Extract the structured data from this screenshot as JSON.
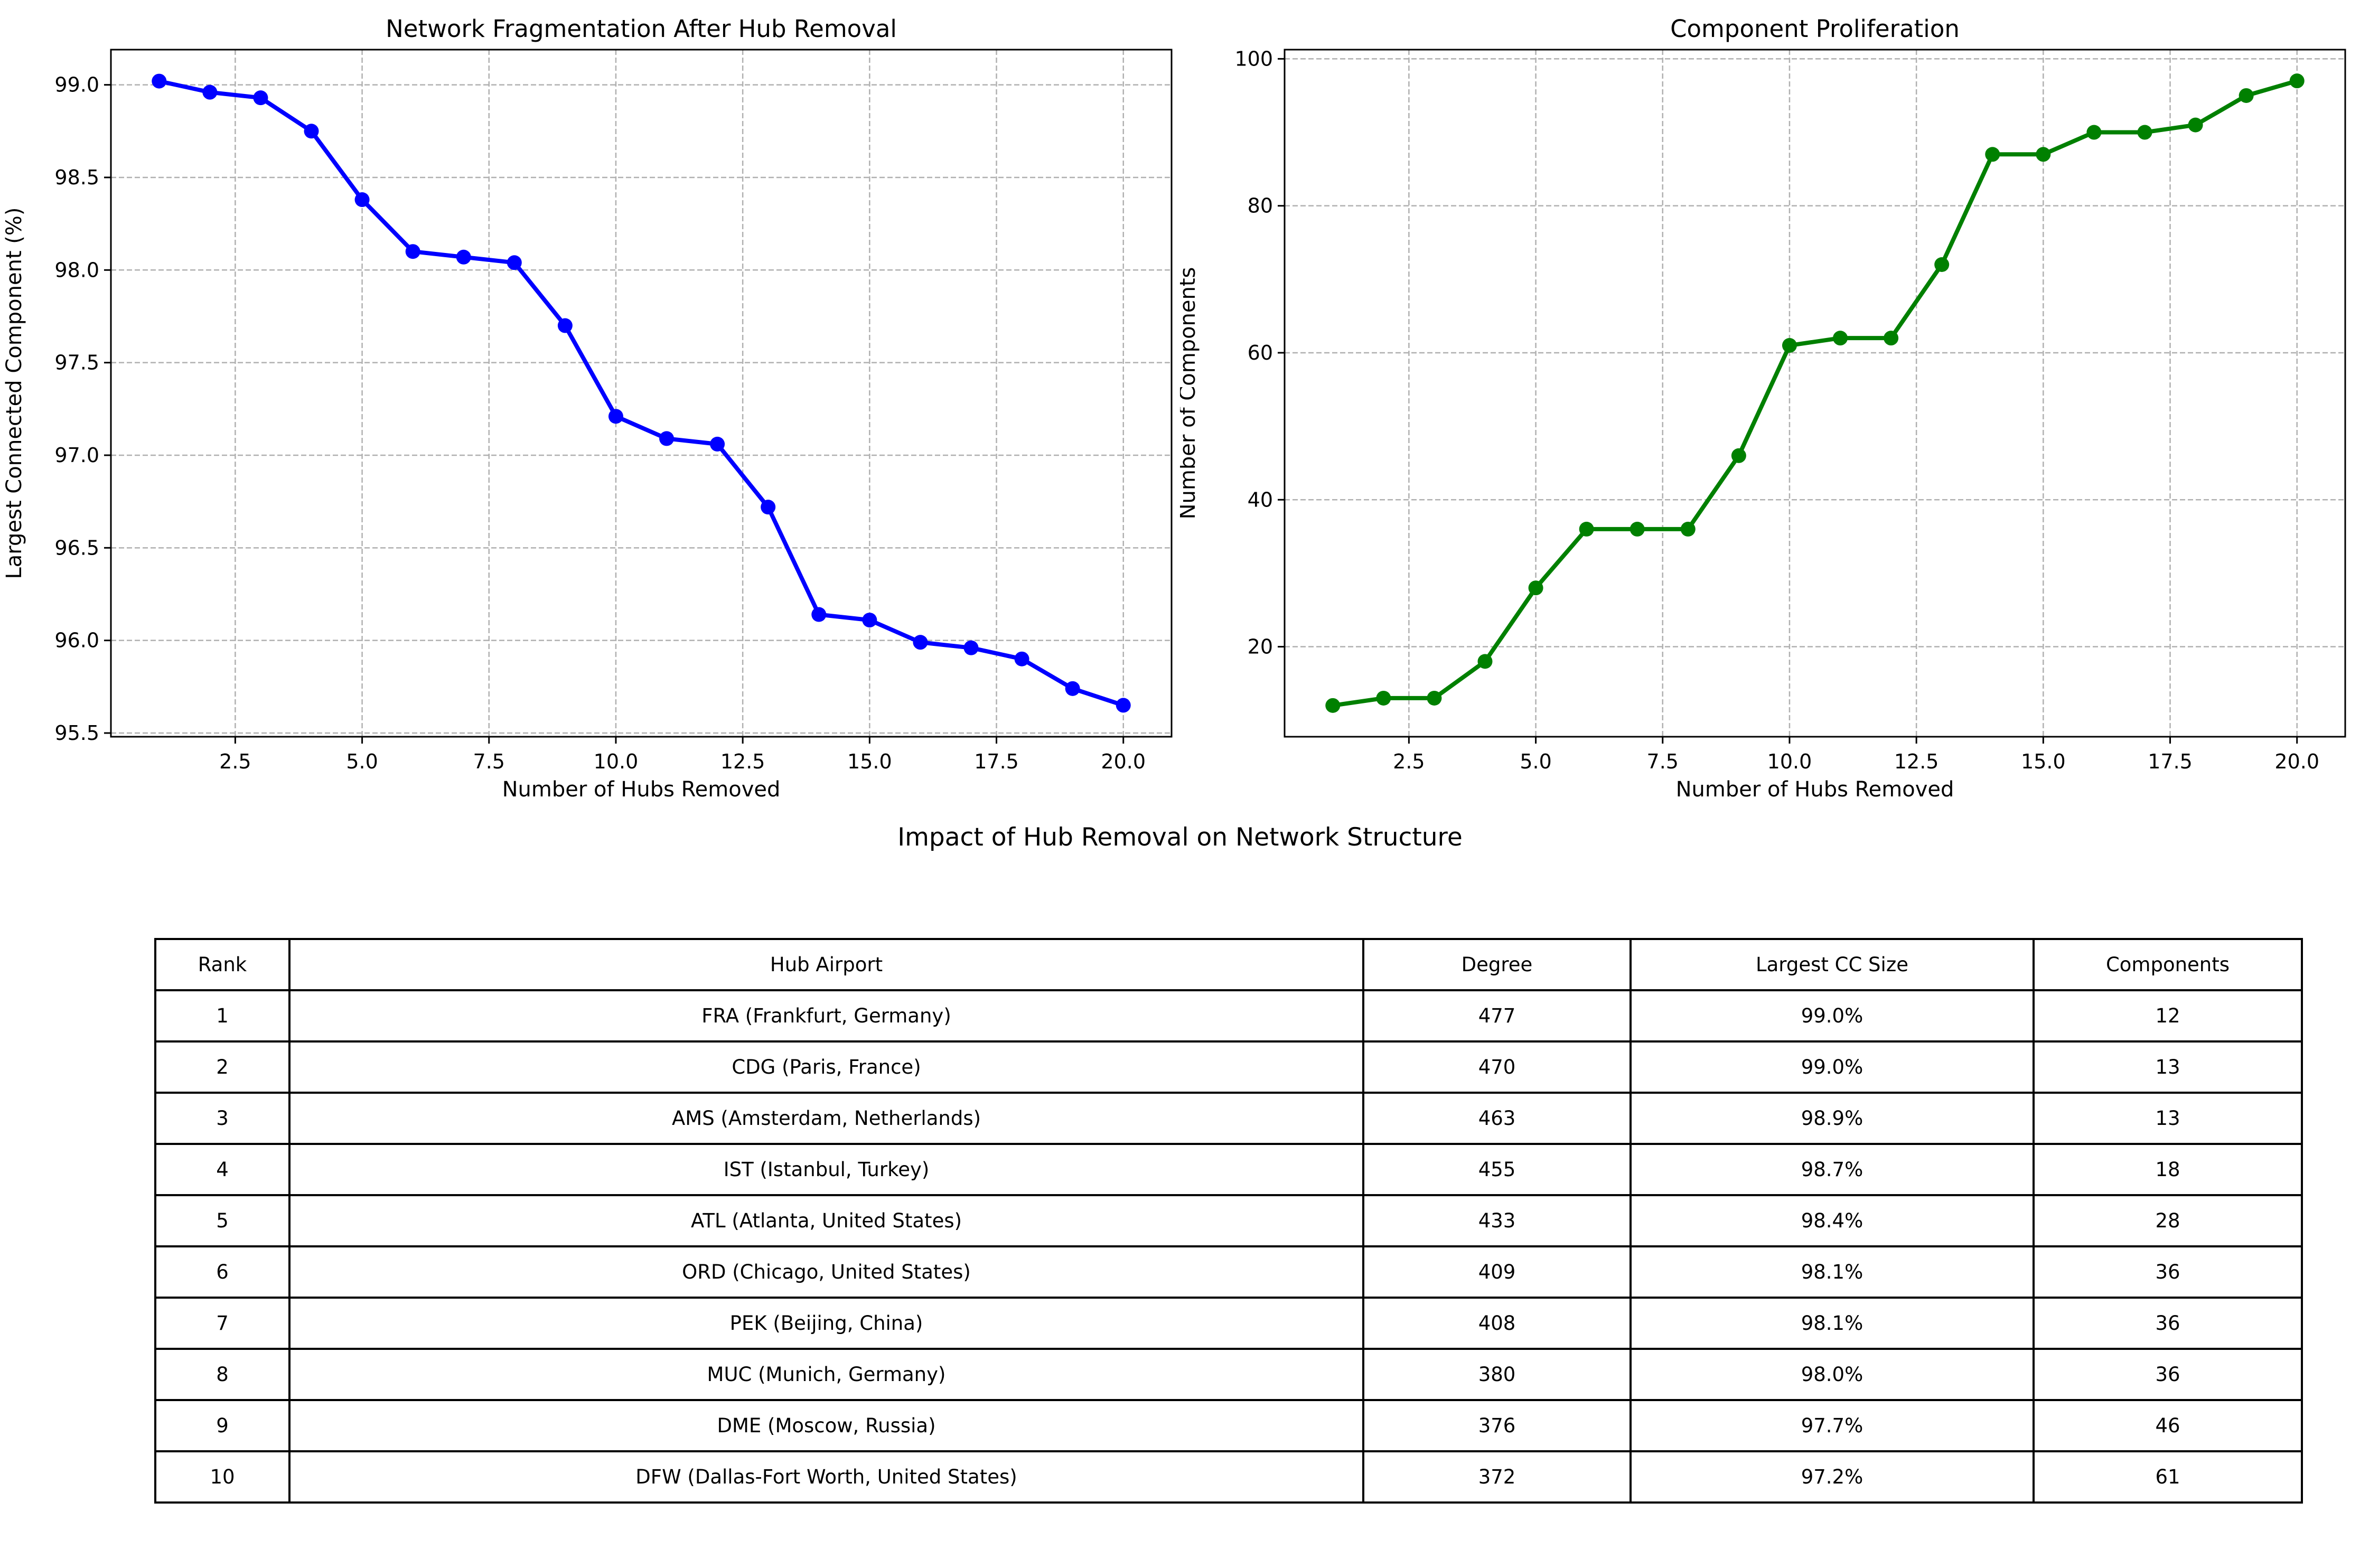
{
  "colors": {
    "left_series": "#0000ff",
    "right_series": "#008000",
    "grid": "#b0b0b0"
  },
  "suptitle": "Impact of Hub Removal on Network Structure",
  "chart_data": [
    {
      "type": "line",
      "title": "Network Fragmentation After Hub Removal",
      "xlabel": "Number of Hubs Removed",
      "ylabel": "Largest Connected Component (%)",
      "x": [
        1,
        2,
        3,
        4,
        5,
        6,
        7,
        8,
        9,
        10,
        11,
        12,
        13,
        14,
        15,
        16,
        17,
        18,
        19,
        20
      ],
      "values": [
        99.02,
        98.96,
        98.93,
        98.75,
        98.38,
        98.1,
        98.07,
        98.04,
        97.7,
        97.21,
        97.09,
        97.06,
        96.72,
        96.14,
        96.11,
        95.99,
        95.96,
        95.9,
        95.74,
        95.65
      ],
      "xlim": [
        0.05,
        20.95
      ],
      "ylim": [
        95.48,
        99.19
      ],
      "xticks": [
        2.5,
        5.0,
        7.5,
        10.0,
        12.5,
        15.0,
        17.5,
        20.0
      ],
      "yticks": [
        95.5,
        96.0,
        96.5,
        97.0,
        97.5,
        98.0,
        98.5,
        99.0
      ],
      "xtick_labels": [
        "2.5",
        "5.0",
        "7.5",
        "10.0",
        "12.5",
        "15.0",
        "17.5",
        "20.0"
      ],
      "ytick_labels": [
        "95.5",
        "96.0",
        "96.5",
        "97.0",
        "97.5",
        "98.0",
        "98.5",
        "99.0"
      ],
      "grid": true,
      "marker": "circle"
    },
    {
      "type": "line",
      "title": "Component Proliferation",
      "xlabel": "Number of Hubs Removed",
      "ylabel": "Number of Components",
      "x": [
        1,
        2,
        3,
        4,
        5,
        6,
        7,
        8,
        9,
        10,
        11,
        12,
        13,
        14,
        15,
        16,
        17,
        18,
        19,
        20
      ],
      "values": [
        12,
        13,
        13,
        18,
        28,
        36,
        36,
        36,
        46,
        61,
        62,
        62,
        72,
        87,
        87,
        90,
        90,
        91,
        95,
        97
      ],
      "xlim": [
        0.05,
        20.95
      ],
      "ylim": [
        7.75,
        101.25
      ],
      "xticks": [
        2.5,
        5.0,
        7.5,
        10.0,
        12.5,
        15.0,
        17.5,
        20.0
      ],
      "yticks": [
        20,
        40,
        60,
        80,
        100
      ],
      "xtick_labels": [
        "2.5",
        "5.0",
        "7.5",
        "10.0",
        "12.5",
        "15.0",
        "17.5",
        "20.0"
      ],
      "ytick_labels": [
        "20",
        "40",
        "60",
        "80",
        "100"
      ],
      "grid": true,
      "marker": "circle"
    },
    {
      "type": "table",
      "columns": [
        "Rank",
        "Hub Airport",
        "Degree",
        "Largest CC Size",
        "Components"
      ],
      "rows": [
        [
          "1",
          "FRA (Frankfurt, Germany)",
          "477",
          "99.0%",
          "12"
        ],
        [
          "2",
          "CDG (Paris, France)",
          "470",
          "99.0%",
          "13"
        ],
        [
          "3",
          "AMS (Amsterdam, Netherlands)",
          "463",
          "98.9%",
          "13"
        ],
        [
          "4",
          "IST (Istanbul, Turkey)",
          "455",
          "98.7%",
          "18"
        ],
        [
          "5",
          "ATL (Atlanta, United States)",
          "433",
          "98.4%",
          "28"
        ],
        [
          "6",
          "ORD (Chicago, United States)",
          "409",
          "98.1%",
          "36"
        ],
        [
          "7",
          "PEK (Beijing, China)",
          "408",
          "98.1%",
          "36"
        ],
        [
          "8",
          "MUC (Munich, Germany)",
          "380",
          "98.0%",
          "36"
        ],
        [
          "9",
          "DME (Moscow, Russia)",
          "376",
          "97.7%",
          "46"
        ],
        [
          "10",
          "DFW (Dallas-Fort Worth, United States)",
          "372",
          "97.2%",
          "61"
        ]
      ]
    }
  ]
}
